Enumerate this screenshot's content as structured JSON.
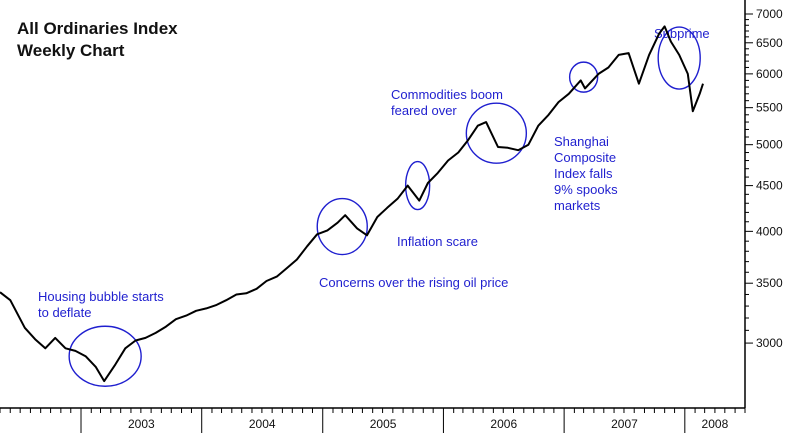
{
  "chart_data": {
    "type": "line",
    "title": "All Ordinaries Index",
    "subtitle": "Weekly Chart",
    "y_scale": "log",
    "ylim": [
      2700,
      7000
    ],
    "y_ticks": [
      3000,
      3500,
      4000,
      4500,
      5000,
      5500,
      6000,
      6500,
      7000
    ],
    "xlim": [
      "2002-05-01",
      "2008-07-01"
    ],
    "x_tick_labels": [
      "2003",
      "2004",
      "2005",
      "2006",
      "2007",
      "2008"
    ],
    "grid": false,
    "colors": {
      "line": "#000000",
      "annotation": "#1f1fcf"
    },
    "series": [
      {
        "x": [
          "2002-05-01",
          "2002-06-01",
          "2002-07-15",
          "2002-08-15",
          "2002-09-15",
          "2002-10-15",
          "2002-11-15",
          "2002-12-15",
          "2003-01-15",
          "2003-02-15",
          "2003-03-12",
          "2003-04-15",
          "2003-05-15",
          "2003-06-15",
          "2003-07-15",
          "2003-08-15",
          "2003-09-15",
          "2003-10-15",
          "2003-11-15",
          "2003-12-15",
          "2004-01-15",
          "2004-02-15",
          "2004-03-15",
          "2004-04-15",
          "2004-05-15",
          "2004-06-15",
          "2004-07-15",
          "2004-08-15",
          "2004-09-15",
          "2004-10-15",
          "2004-11-15",
          "2004-12-15",
          "2005-01-15",
          "2005-02-15",
          "2005-03-10",
          "2005-04-15",
          "2005-05-15",
          "2005-06-15",
          "2005-07-15",
          "2005-08-15",
          "2005-09-15",
          "2005-10-20",
          "2005-11-15",
          "2005-12-15",
          "2006-01-15",
          "2006-02-15",
          "2006-03-15",
          "2006-04-15",
          "2006-05-10",
          "2006-06-15",
          "2006-07-15",
          "2006-08-15",
          "2006-09-15",
          "2006-10-15",
          "2006-11-15",
          "2006-12-15",
          "2007-01-15",
          "2007-02-20",
          "2007-03-05",
          "2007-04-15",
          "2007-05-15",
          "2007-06-15",
          "2007-07-15",
          "2007-08-15",
          "2007-09-15",
          "2007-10-15",
          "2007-11-01",
          "2007-11-20",
          "2007-12-15",
          "2008-01-10",
          "2008-01-25",
          "2008-02-15",
          "2008-02-25"
        ],
        "y": [
          3420,
          3350,
          3120,
          3030,
          2960,
          3040,
          2960,
          2940,
          2900,
          2820,
          2720,
          2840,
          2960,
          3020,
          3040,
          3080,
          3130,
          3190,
          3220,
          3260,
          3280,
          3310,
          3350,
          3400,
          3410,
          3450,
          3520,
          3560,
          3640,
          3720,
          3850,
          3970,
          4010,
          4090,
          4170,
          4030,
          3960,
          4150,
          4250,
          4350,
          4500,
          4330,
          4530,
          4650,
          4800,
          4900,
          5050,
          5250,
          5300,
          4970,
          4960,
          4930,
          5000,
          5250,
          5400,
          5580,
          5700,
          5900,
          5780,
          6000,
          6100,
          6300,
          6330,
          5850,
          6300,
          6650,
          6780,
          6520,
          6300,
          6000,
          5450,
          5700,
          5850
        ]
      }
    ],
    "annotations": [
      {
        "label": [
          "Housing bubble starts",
          "to deflate"
        ],
        "x": "2003-03-15",
        "y": 2900
      },
      {
        "label": [
          "Concerns over the rising oil price"
        ],
        "x": "2005-03-01",
        "y": 4050
      },
      {
        "label": [
          "Inflation scare"
        ],
        "x": "2005-10-15",
        "y": 4500
      },
      {
        "label": [
          "Commodities boom",
          "feared over"
        ],
        "x": "2006-06-10",
        "y": 5150
      },
      {
        "label": [
          "Shanghai",
          "Composite",
          "Index falls",
          "9% spooks",
          "markets"
        ],
        "x": "2007-03-01",
        "y": 5950
      },
      {
        "label": [
          "Subprime"
        ],
        "x": "2007-12-15",
        "y": 6250
      }
    ]
  }
}
